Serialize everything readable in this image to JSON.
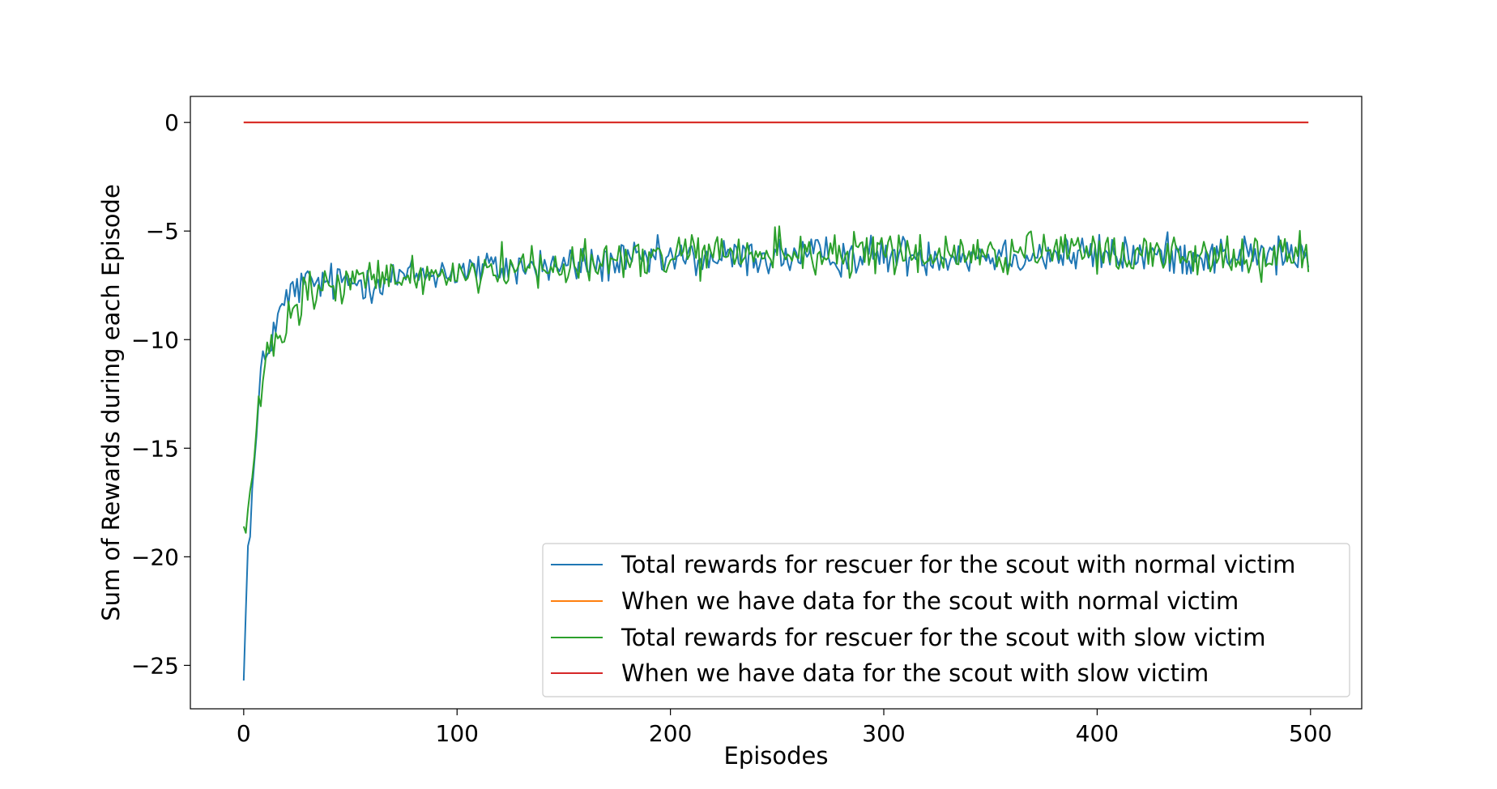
{
  "chart_data": {
    "type": "line",
    "title": "",
    "xlabel": "Episodes",
    "ylabel": "Sum of Rewards during each Episode",
    "xlim": [
      -25,
      524
    ],
    "ylim": [
      -27.0,
      1.2
    ],
    "xticks": [
      0,
      100,
      200,
      300,
      400,
      500
    ],
    "xtick_labels": [
      "0",
      "100",
      "200",
      "300",
      "400",
      "500"
    ],
    "yticks": [
      0,
      -5,
      -10,
      -15,
      -20,
      -25
    ],
    "ytick_labels": [
      "0",
      "−5",
      "−10",
      "−15",
      "−20",
      "−25"
    ],
    "grid": false,
    "legend_position": "bottom-right",
    "series": [
      {
        "name": "Total rewards for rescuer for the scout with normal victim",
        "color": "#1f77b4",
        "x_range": [
          0,
          499
        ],
        "keypoints": [
          [
            0,
            -25.7
          ],
          [
            1,
            -22.5
          ],
          [
            2,
            -19.5
          ],
          [
            4,
            -17.0
          ],
          [
            6,
            -14.5
          ],
          [
            8,
            -11.6
          ],
          [
            10,
            -11.0
          ],
          [
            12,
            -10.2
          ],
          [
            14,
            -9.5
          ],
          [
            17,
            -8.9
          ],
          [
            20,
            -8.2
          ],
          [
            25,
            -7.6
          ],
          [
            30,
            -7.4
          ],
          [
            40,
            -7.4
          ],
          [
            60,
            -7.3
          ],
          [
            100,
            -6.8
          ],
          [
            150,
            -6.6
          ],
          [
            200,
            -6.3
          ],
          [
            250,
            -6.2
          ],
          [
            300,
            -6.1
          ],
          [
            400,
            -6.1
          ],
          [
            499,
            -6.1
          ]
        ],
        "noise_amplitude": 0.45
      },
      {
        "name": "When we have data for the scout with normal victim",
        "color": "#ff7f0e",
        "x_range": [
          0,
          499
        ],
        "keypoints": [
          [
            0,
            0.0
          ],
          [
            499,
            0.0
          ]
        ],
        "noise_amplitude": 0
      },
      {
        "name": "Total rewards for rescuer for the scout with slow victim",
        "color": "#2ca02c",
        "x_range": [
          0,
          499
        ],
        "keypoints": [
          [
            0,
            -18.6
          ],
          [
            1,
            -18.9
          ],
          [
            2,
            -17.8
          ],
          [
            4,
            -16.5
          ],
          [
            6,
            -14.2
          ],
          [
            8,
            -12.8
          ],
          [
            10,
            -11.2
          ],
          [
            13,
            -10.3
          ],
          [
            16,
            -10.1
          ],
          [
            20,
            -9.6
          ],
          [
            25,
            -8.6
          ],
          [
            30,
            -7.9
          ],
          [
            40,
            -7.6
          ],
          [
            60,
            -7.2
          ],
          [
            100,
            -6.9
          ],
          [
            150,
            -6.5
          ],
          [
            200,
            -6.2
          ],
          [
            250,
            -6.0
          ],
          [
            300,
            -6.1
          ],
          [
            400,
            -6.0
          ],
          [
            499,
            -6.2
          ]
        ],
        "noise_amplitude": 0.5
      },
      {
        "name": "When we have data for the scout with slow victim",
        "color": "#d62728",
        "x_range": [
          0,
          499
        ],
        "keypoints": [
          [
            0,
            0.0
          ],
          [
            499,
            0.0
          ]
        ],
        "noise_amplitude": 0
      }
    ]
  }
}
